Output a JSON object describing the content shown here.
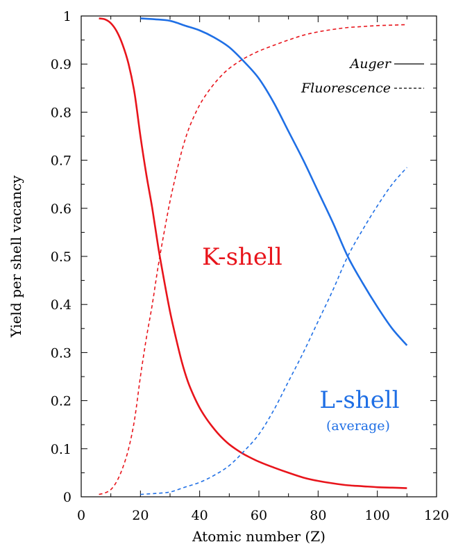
{
  "chart_data": {
    "type": "line",
    "title": "",
    "xlabel": "Atomic number (Z)",
    "ylabel": "Yield per shell vacancy",
    "xlim": [
      0,
      120
    ],
    "ylim": [
      0,
      1
    ],
    "xticks": [
      0,
      20,
      40,
      60,
      80,
      100,
      120
    ],
    "yticks": [
      0,
      0.1,
      0.2,
      0.3,
      0.4,
      0.5,
      0.6,
      0.7,
      0.8,
      0.9,
      1
    ],
    "grid": false,
    "legend": {
      "placement": "top-right",
      "entries": [
        {
          "label": "Auger",
          "style": "solid"
        },
        {
          "label": "Fluorescence",
          "style": "dashed"
        }
      ]
    },
    "colors": {
      "k_shell": "#e8141b",
      "l_shell": "#1f6fe5"
    },
    "annotations": [
      {
        "text": "K-shell",
        "x": 34,
        "y": 0.5,
        "series_group": "K"
      },
      {
        "text": "L-shell",
        "x": 94,
        "y": 0.2,
        "series_group": "L"
      },
      {
        "text": "(average)",
        "x": 94,
        "y": 0.155,
        "series_group": "L"
      }
    ],
    "series": [
      {
        "shell": "K",
        "style": "solid",
        "color": "#e8141b",
        "x": [
          6,
          8,
          10,
          12,
          14,
          16,
          18,
          20,
          22,
          24,
          26,
          28,
          30,
          32,
          34,
          36,
          38,
          40,
          42,
          44,
          46,
          48,
          50,
          52,
          54,
          56,
          60,
          65,
          70,
          75,
          80,
          85,
          90,
          95,
          100,
          105,
          110
        ],
        "y": [
          0.995,
          0.993,
          0.985,
          0.968,
          0.94,
          0.9,
          0.84,
          0.75,
          0.67,
          0.6,
          0.52,
          0.45,
          0.385,
          0.33,
          0.28,
          0.24,
          0.21,
          0.185,
          0.165,
          0.148,
          0.133,
          0.12,
          0.109,
          0.1,
          0.092,
          0.085,
          0.073,
          0.061,
          0.05,
          0.04,
          0.033,
          0.028,
          0.024,
          0.022,
          0.02,
          0.019,
          0.018
        ]
      },
      {
        "shell": "K",
        "style": "dashed",
        "color": "#e8141b",
        "x": [
          6,
          8,
          10,
          12,
          14,
          16,
          18,
          20,
          22,
          24,
          26,
          28,
          30,
          32,
          34,
          36,
          38,
          40,
          42,
          44,
          46,
          48,
          50,
          52,
          54,
          56,
          60,
          65,
          70,
          75,
          80,
          85,
          90,
          95,
          100,
          105,
          110
        ],
        "y": [
          0.005,
          0.008,
          0.015,
          0.032,
          0.06,
          0.1,
          0.16,
          0.25,
          0.33,
          0.4,
          0.48,
          0.55,
          0.615,
          0.67,
          0.72,
          0.76,
          0.79,
          0.815,
          0.835,
          0.852,
          0.867,
          0.88,
          0.891,
          0.9,
          0.908,
          0.915,
          0.927,
          0.939,
          0.95,
          0.96,
          0.967,
          0.972,
          0.976,
          0.978,
          0.98,
          0.981,
          0.982
        ]
      },
      {
        "shell": "L",
        "style": "solid",
        "color": "#1f6fe5",
        "x": [
          20,
          25,
          30,
          35,
          40,
          45,
          50,
          55,
          60,
          65,
          70,
          75,
          80,
          85,
          90,
          95,
          100,
          105,
          110
        ],
        "y": [
          0.995,
          0.993,
          0.99,
          0.98,
          0.97,
          0.955,
          0.935,
          0.905,
          0.87,
          0.82,
          0.76,
          0.7,
          0.635,
          0.57,
          0.5,
          0.445,
          0.395,
          0.35,
          0.315
        ]
      },
      {
        "shell": "L",
        "style": "dashed",
        "color": "#1f6fe5",
        "x": [
          20,
          25,
          30,
          35,
          40,
          45,
          50,
          55,
          60,
          65,
          70,
          75,
          80,
          85,
          90,
          95,
          100,
          105,
          110
        ],
        "y": [
          0.005,
          0.007,
          0.01,
          0.02,
          0.03,
          0.045,
          0.065,
          0.095,
          0.13,
          0.18,
          0.24,
          0.3,
          0.365,
          0.43,
          0.5,
          0.555,
          0.605,
          0.65,
          0.685
        ]
      }
    ]
  }
}
